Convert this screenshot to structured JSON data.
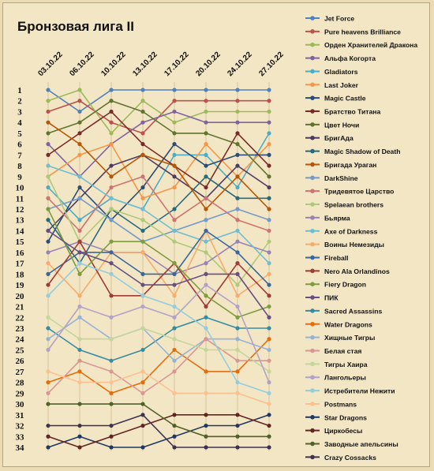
{
  "chart_data": {
    "type": "line",
    "title": "Бронзовая лига II",
    "xlabel": "",
    "ylabel": "",
    "x": [
      "03.10.22",
      "06.10.22",
      "10.10.22",
      "13.10.22",
      "17.10.22",
      "20.10.22",
      "24.10.22",
      "27.10.22"
    ],
    "yticks": [
      1,
      2,
      3,
      4,
      5,
      6,
      7,
      8,
      9,
      10,
      11,
      12,
      13,
      14,
      15,
      16,
      17,
      18,
      19,
      20,
      21,
      22,
      23,
      24,
      25,
      26,
      27,
      28,
      29,
      30,
      31,
      32,
      33,
      34
    ],
    "ylim": [
      1,
      34
    ],
    "y_inverted": true,
    "grid": "vertical",
    "legend": "right",
    "series": [
      {
        "name": "Jet Force",
        "color": "#4f81bd",
        "values": [
          1,
          3,
          1,
          1,
          1,
          1,
          1,
          1
        ]
      },
      {
        "name": "Pure heavens Brilliance",
        "color": "#c0504d",
        "values": [
          3,
          2,
          4,
          5,
          2,
          2,
          2,
          2
        ]
      },
      {
        "name": "Орден Хранителей Дракона",
        "color": "#9bbb59",
        "values": [
          2,
          1,
          5,
          2,
          4,
          3,
          3,
          3
        ]
      },
      {
        "name": "Альфа Когорта",
        "color": "#8064a2",
        "values": [
          6,
          9,
          6,
          4,
          3,
          4,
          4,
          4
        ]
      },
      {
        "name": "Gladiators",
        "color": "#4bacc6",
        "values": [
          10,
          13,
          11,
          12,
          7,
          7,
          10,
          5
        ]
      },
      {
        "name": "Last Joker",
        "color": "#f79646",
        "values": [
          9,
          7,
          6,
          11,
          10,
          6,
          9,
          6
        ]
      },
      {
        "name": "Magic Castle",
        "color": "#2c4d75",
        "values": [
          15,
          10,
          13,
          10,
          6,
          8,
          7,
          7
        ]
      },
      {
        "name": "Братство Титана",
        "color": "#772c2a",
        "values": [
          7,
          5,
          3,
          6,
          8,
          10,
          5,
          8
        ]
      },
      {
        "name": "Цвет Ночи",
        "color": "#5f7530",
        "values": [
          5,
          4,
          2,
          3,
          5,
          5,
          6,
          9
        ]
      },
      {
        "name": "БригАда",
        "color": "#4d3b62",
        "values": [
          14,
          11,
          8,
          7,
          9,
          11,
          8,
          10
        ]
      },
      {
        "name": "Magic Shadow of Death",
        "color": "#276a7c",
        "values": [
          13,
          17,
          12,
          14,
          12,
          9,
          11,
          11
        ]
      },
      {
        "name": "Бригада Ураган",
        "color": "#b65708",
        "values": [
          4,
          6,
          9,
          7,
          8,
          12,
          9,
          12
        ]
      },
      {
        "name": "DarkShine",
        "color": "#729aca",
        "values": [
          12,
          11,
          13,
          15,
          14,
          13,
          12,
          13
        ]
      },
      {
        "name": "Тридевятое Царство",
        "color": "#cd7371",
        "values": [
          11,
          14,
          10,
          9,
          13,
          11,
          13,
          14
        ]
      },
      {
        "name": "Spelaean brothers",
        "color": "#afc97a",
        "values": [
          9,
          15,
          12,
          13,
          15,
          16,
          19,
          15
        ]
      },
      {
        "name": "Бьярма",
        "color": "#9983b5",
        "values": [
          16,
          15,
          16,
          16,
          18,
          17,
          15,
          16
        ]
      },
      {
        "name": "Axe of Darkness",
        "color": "#6fbdd1",
        "values": [
          8,
          9,
          11,
          12,
          14,
          15,
          14,
          17
        ]
      },
      {
        "name": "Воины Немезиды",
        "color": "#f9ab6b",
        "values": [
          17,
          20,
          16,
          16,
          20,
          14,
          20,
          18
        ]
      },
      {
        "name": "Fireball",
        "color": "#3a679c",
        "values": [
          18,
          16,
          16,
          18,
          18,
          14,
          16,
          19
        ]
      },
      {
        "name": "Nero Ala Orlandinos",
        "color": "#9f3b38",
        "values": [
          19,
          15,
          20,
          20,
          17,
          21,
          17,
          20
        ]
      },
      {
        "name": "Fiery Dragon",
        "color": "#7e9c40",
        "values": [
          12,
          18,
          15,
          15,
          17,
          20,
          22,
          21
        ]
      },
      {
        "name": "ПИК",
        "color": "#664f82",
        "values": [
          14,
          16,
          17,
          19,
          19,
          18,
          18,
          22
        ]
      },
      {
        "name": "Sacred Assassins",
        "color": "#358ca3",
        "values": [
          23,
          25,
          26,
          25,
          23,
          22,
          23,
          23
        ]
      },
      {
        "name": "Water Dragons",
        "color": "#e46c0a",
        "values": [
          28,
          27,
          29,
          28,
          25,
          27,
          27,
          24
        ]
      },
      {
        "name": "Хищные Тигры",
        "color": "#95b3d7",
        "values": [
          24,
          22,
          24,
          23,
          26,
          24,
          24,
          25
        ]
      },
      {
        "name": "Белая стая",
        "color": "#d99694",
        "values": [
          29,
          26,
          27,
          29,
          27,
          24,
          26,
          26
        ]
      },
      {
        "name": "Тигры Хаира",
        "color": "#c3d69b",
        "values": [
          22,
          24,
          24,
          23,
          24,
          25,
          25,
          27
        ]
      },
      {
        "name": "Лангольеры",
        "color": "#b3a2c7",
        "values": [
          25,
          21,
          22,
          21,
          22,
          19,
          21,
          28
        ]
      },
      {
        "name": "Истребители Нежити",
        "color": "#93cddd",
        "values": [
          20,
          17,
          18,
          20,
          21,
          23,
          28,
          29
        ]
      },
      {
        "name": "Postmans",
        "color": "#fac090",
        "values": [
          27,
          28,
          28,
          27,
          29,
          29,
          29,
          30
        ]
      },
      {
        "name": "Star Dragons",
        "color": "#1f3864",
        "values": [
          34,
          33,
          34,
          34,
          33,
          32,
          32,
          31
        ]
      },
      {
        "name": "Циркобесы",
        "color": "#632523",
        "values": [
          33,
          34,
          33,
          32,
          31,
          31,
          31,
          32
        ]
      },
      {
        "name": "Заводные апельсины",
        "color": "#4f6228",
        "values": [
          30,
          30,
          30,
          30,
          32,
          33,
          33,
          33
        ]
      },
      {
        "name": "Crazy Cossacks",
        "color": "#3f3151",
        "values": [
          32,
          32,
          32,
          31,
          34,
          34,
          34,
          34
        ]
      }
    ]
  }
}
